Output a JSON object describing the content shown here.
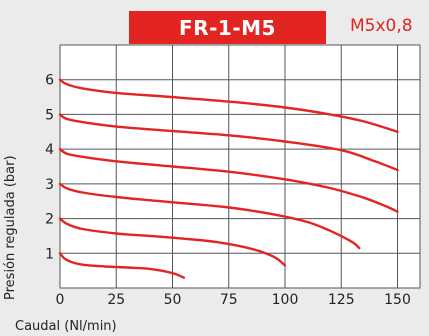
{
  "header": {
    "model": "FR-1-M5",
    "port": "M5x0,8"
  },
  "colors": {
    "accent": "#e22522",
    "curve": "#e22522",
    "grid": "#555555",
    "plot_background": "#ffffff",
    "page_background": "#ebebeb"
  },
  "chart_data": {
    "type": "line",
    "title": "FR-1-M5",
    "subtitle": "M5x0,8",
    "xlabel": "Caudal (Nl/min)",
    "ylabel": "Presión regulada (bar)",
    "xlim": [
      0,
      160
    ],
    "ylim": [
      0,
      7
    ],
    "x_ticks": [
      "0",
      "25",
      "50",
      "75",
      "100",
      "125",
      "150"
    ],
    "y_ticks": [
      "1",
      "2",
      "3",
      "4",
      "5",
      "6"
    ],
    "grid": true,
    "series": [
      {
        "x": [
          0,
          2,
          5,
          10,
          20,
          30,
          40,
          50,
          55
        ],
        "y": [
          1.0,
          0.85,
          0.75,
          0.67,
          0.62,
          0.59,
          0.55,
          0.43,
          0.3
        ]
      },
      {
        "x": [
          0,
          3,
          10,
          25,
          40,
          55,
          70,
          85,
          95,
          100
        ],
        "y": [
          2.0,
          1.85,
          1.7,
          1.57,
          1.5,
          1.42,
          1.32,
          1.13,
          0.9,
          0.65
        ]
      },
      {
        "x": [
          0,
          3,
          10,
          25,
          50,
          75,
          95,
          110,
          120,
          130,
          133
        ],
        "y": [
          3.0,
          2.87,
          2.75,
          2.62,
          2.47,
          2.32,
          2.12,
          1.9,
          1.65,
          1.32,
          1.15
        ]
      },
      {
        "x": [
          0,
          3,
          10,
          25,
          50,
          75,
          100,
          120,
          135,
          145,
          150
        ],
        "y": [
          4.0,
          3.87,
          3.78,
          3.65,
          3.5,
          3.35,
          3.13,
          2.88,
          2.6,
          2.35,
          2.2
        ]
      },
      {
        "x": [
          0,
          3,
          10,
          25,
          50,
          75,
          100,
          125,
          140,
          150
        ],
        "y": [
          5.0,
          4.87,
          4.78,
          4.65,
          4.52,
          4.4,
          4.22,
          3.97,
          3.65,
          3.4
        ]
      },
      {
        "x": [
          0,
          3,
          10,
          25,
          50,
          75,
          100,
          120,
          135,
          150
        ],
        "y": [
          6.0,
          5.87,
          5.75,
          5.62,
          5.5,
          5.37,
          5.2,
          5.0,
          4.8,
          4.5
        ]
      }
    ]
  }
}
